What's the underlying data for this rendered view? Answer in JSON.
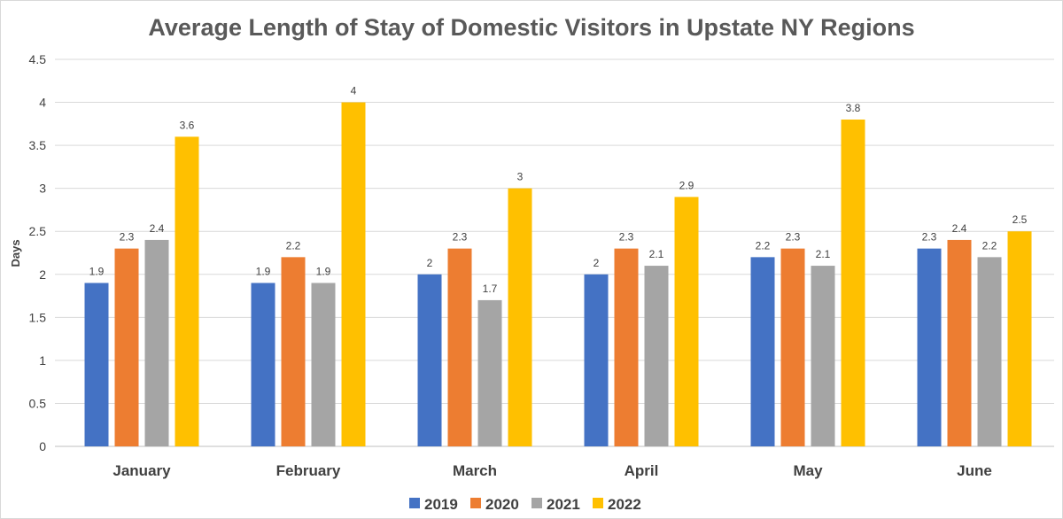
{
  "chart_data": {
    "type": "bar",
    "title": "Average Length of Stay of Domestic Visitors in Upstate NY Regions",
    "xlabel": "",
    "ylabel": "Days",
    "ylim": [
      0,
      4.5
    ],
    "yticks": [
      "0",
      "0.5",
      "1",
      "1.5",
      "2",
      "2.5",
      "3",
      "3.5",
      "4",
      "4.5"
    ],
    "grid": true,
    "legend_position": "bottom",
    "categories": [
      "January",
      "February",
      "March",
      "April",
      "May",
      "June"
    ],
    "series": [
      {
        "name": "2019",
        "color": "#4472C4",
        "values": [
          1.9,
          1.9,
          2,
          2,
          2.2,
          2.3
        ]
      },
      {
        "name": "2020",
        "color": "#ED7D31",
        "values": [
          2.3,
          2.2,
          2.3,
          2.3,
          2.3,
          2.4
        ]
      },
      {
        "name": "2021",
        "color": "#A5A5A5",
        "values": [
          2.4,
          1.9,
          1.7,
          2.1,
          2.1,
          2.2
        ]
      },
      {
        "name": "2022",
        "color": "#FFC000",
        "values": [
          3.6,
          4,
          3,
          2.9,
          3.8,
          2.5
        ]
      }
    ]
  }
}
